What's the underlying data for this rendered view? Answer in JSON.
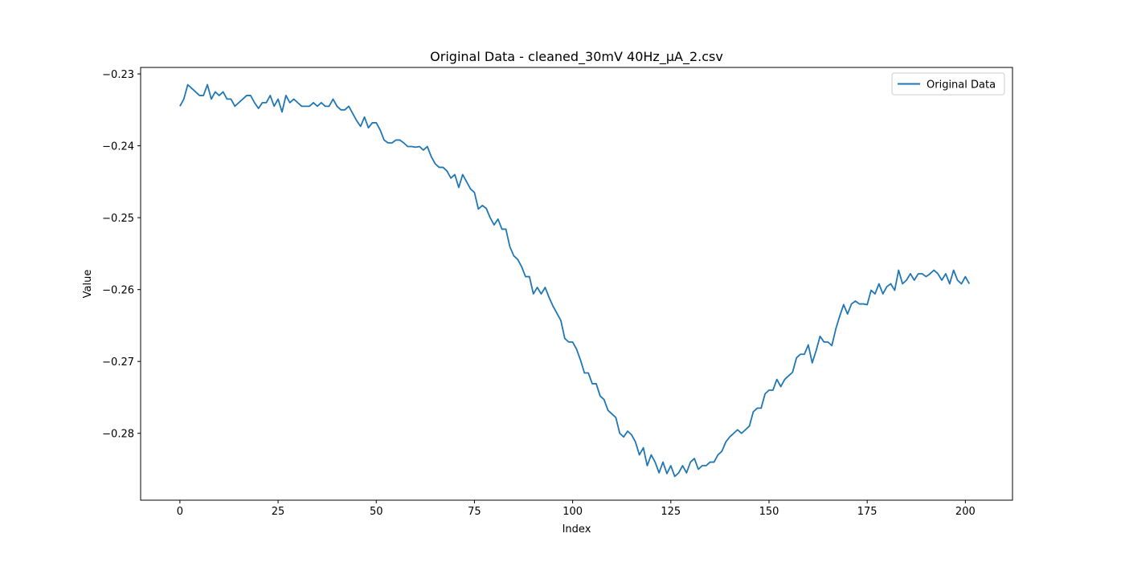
{
  "chart_data": {
    "type": "line",
    "title": "Original Data - cleaned_30mV 40Hz_µA_2.csv",
    "xlabel": "Index",
    "ylabel": "Value",
    "xlim": [
      -10,
      212
    ],
    "ylim": [
      -0.2893,
      -0.2291
    ],
    "xticks": [
      0,
      25,
      50,
      75,
      100,
      125,
      150,
      175,
      200
    ],
    "yticks": [
      -0.23,
      -0.24,
      -0.25,
      -0.26,
      -0.27,
      -0.28
    ],
    "ytick_labels": [
      "−0.23",
      "−0.24",
      "−0.25",
      "−0.26",
      "−0.27",
      "−0.28"
    ],
    "grid": false,
    "legend": {
      "position": "top-right",
      "entries": [
        "Original Data"
      ]
    },
    "colors": {
      "line": "#1f77b4"
    },
    "series": [
      {
        "name": "Original Data",
        "x_start": 0,
        "x_step": 1,
        "values": [
          -0.2345,
          -0.2335,
          -0.2315,
          -0.232,
          -0.2325,
          -0.233,
          -0.233,
          -0.2315,
          -0.2335,
          -0.2325,
          -0.233,
          -0.2325,
          -0.2335,
          -0.2335,
          -0.2345,
          -0.234,
          -0.2335,
          -0.233,
          -0.233,
          -0.234,
          -0.2348,
          -0.234,
          -0.234,
          -0.233,
          -0.2345,
          -0.2335,
          -0.2353,
          -0.233,
          -0.234,
          -0.2335,
          -0.234,
          -0.2345,
          -0.2345,
          -0.2345,
          -0.234,
          -0.2345,
          -0.234,
          -0.2345,
          -0.2345,
          -0.2335,
          -0.2345,
          -0.235,
          -0.235,
          -0.2345,
          -0.2355,
          -0.2365,
          -0.2373,
          -0.236,
          -0.2375,
          -0.2368,
          -0.2368,
          -0.2378,
          -0.2392,
          -0.2396,
          -0.2396,
          -0.2392,
          -0.2392,
          -0.2396,
          -0.2401,
          -0.2401,
          -0.2402,
          -0.2401,
          -0.2406,
          -0.2401,
          -0.2415,
          -0.2425,
          -0.243,
          -0.243,
          -0.2435,
          -0.2445,
          -0.244,
          -0.2458,
          -0.244,
          -0.245,
          -0.246,
          -0.2465,
          -0.2488,
          -0.2483,
          -0.2487,
          -0.25,
          -0.251,
          -0.2502,
          -0.2516,
          -0.2516,
          -0.254,
          -0.2553,
          -0.2558,
          -0.2568,
          -0.2582,
          -0.2582,
          -0.2606,
          -0.2597,
          -0.2606,
          -0.2597,
          -0.2611,
          -0.2623,
          -0.2633,
          -0.2643,
          -0.2668,
          -0.2673,
          -0.2673,
          -0.2683,
          -0.2698,
          -0.2716,
          -0.2716,
          -0.2731,
          -0.2731,
          -0.2748,
          -0.2753,
          -0.2768,
          -0.2773,
          -0.2778,
          -0.28,
          -0.2805,
          -0.2797,
          -0.2802,
          -0.2812,
          -0.283,
          -0.282,
          -0.2845,
          -0.283,
          -0.284,
          -0.2855,
          -0.284,
          -0.2856,
          -0.2845,
          -0.286,
          -0.2855,
          -0.2845,
          -0.2855,
          -0.284,
          -0.2835,
          -0.285,
          -0.2845,
          -0.2845,
          -0.284,
          -0.284,
          -0.283,
          -0.2825,
          -0.2812,
          -0.2805,
          -0.28,
          -0.2795,
          -0.28,
          -0.2795,
          -0.279,
          -0.277,
          -0.2765,
          -0.2765,
          -0.2745,
          -0.274,
          -0.274,
          -0.2725,
          -0.2735,
          -0.2725,
          -0.272,
          -0.2715,
          -0.2695,
          -0.269,
          -0.269,
          -0.2677,
          -0.2702,
          -0.2685,
          -0.2665,
          -0.2673,
          -0.2673,
          -0.2678,
          -0.2655,
          -0.2637,
          -0.2621,
          -0.2634,
          -0.262,
          -0.2616,
          -0.262,
          -0.262,
          -0.2621,
          -0.2601,
          -0.2606,
          -0.2592,
          -0.2606,
          -0.2596,
          -0.2592,
          -0.2601,
          -0.2573,
          -0.2592,
          -0.2587,
          -0.2578,
          -0.2587,
          -0.2578,
          -0.2578,
          -0.2582,
          -0.2578,
          -0.2573,
          -0.2578,
          -0.2587,
          -0.2578,
          -0.2592,
          -0.2573,
          -0.2587,
          -0.2592,
          -0.2582,
          -0.2592
        ]
      }
    ]
  }
}
